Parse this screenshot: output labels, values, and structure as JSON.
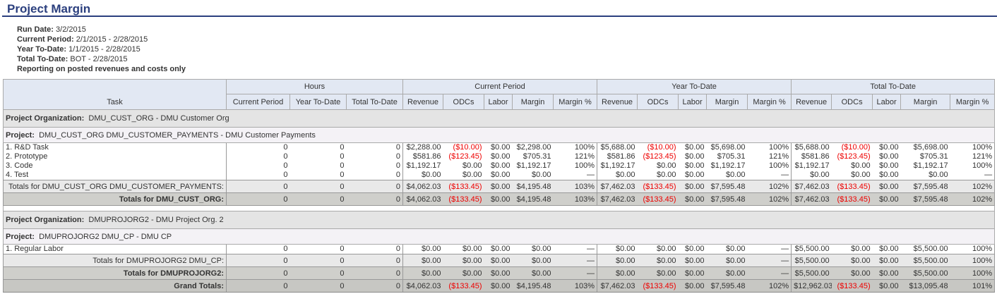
{
  "title": "Project Margin",
  "info": [
    {
      "label": "Run Date:",
      "value": "3/2/2015"
    },
    {
      "label": "Current Period:",
      "value": "2/1/2015 - 2/28/2015"
    },
    {
      "label": "Year To-Date:",
      "value": "1/1/2015 - 2/28/2015"
    },
    {
      "label": "Total To-Date:",
      "value": "BOT - 2/28/2015"
    },
    {
      "label": "Reporting on posted revenues and costs only",
      "value": ""
    }
  ],
  "headers": {
    "task": "Task",
    "groups": [
      "Hours",
      "Current Period",
      "Year To-Date",
      "Total To-Date"
    ],
    "hours": [
      "Current Period",
      "Year To-Date",
      "Total To-Date"
    ],
    "money": [
      "Revenue",
      "ODCs",
      "Labor",
      "Margin",
      "Margin %"
    ]
  },
  "colors": {
    "title": "#2b3f7e",
    "negative": "#e00000",
    "header_bg": "#e2e8f3"
  },
  "rows": [
    {
      "type": "org",
      "label": "Project Organization:",
      "value": "DMU_CUST_ORG - DMU Customer Org"
    },
    {
      "type": "proj",
      "label": "Project:",
      "value": "DMU_CUST_ORG DMU_CUSTOMER_PAYMENTS - DMU Customer Payments"
    },
    {
      "type": "task",
      "name": "1. R&D Task",
      "cells": [
        "0",
        "0",
        "0",
        "$2,288.00",
        "($10.00)",
        "$0.00",
        "$2,298.00",
        "100%",
        "$5,688.00",
        "($10.00)",
        "$0.00",
        "$5,698.00",
        "100%",
        "$5,688.00",
        "($10.00)",
        "$0.00",
        "$5,698.00",
        "100%"
      ]
    },
    {
      "type": "task",
      "name": "2. Prototype",
      "cells": [
        "0",
        "0",
        "0",
        "$581.86",
        "($123.45)",
        "$0.00",
        "$705.31",
        "121%",
        "$581.86",
        "($123.45)",
        "$0.00",
        "$705.31",
        "121%",
        "$581.86",
        "($123.45)",
        "$0.00",
        "$705.31",
        "121%"
      ]
    },
    {
      "type": "task",
      "name": "3. Code",
      "cells": [
        "0",
        "0",
        "0",
        "$1,192.17",
        "$0.00",
        "$0.00",
        "$1,192.17",
        "100%",
        "$1,192.17",
        "$0.00",
        "$0.00",
        "$1,192.17",
        "100%",
        "$1,192.17",
        "$0.00",
        "$0.00",
        "$1,192.17",
        "100%"
      ]
    },
    {
      "type": "task",
      "name": "4. Test",
      "cells": [
        "0",
        "0",
        "0",
        "$0.00",
        "$0.00",
        "$0.00",
        "$0.00",
        "—",
        "$0.00",
        "$0.00",
        "$0.00",
        "$0.00",
        "—",
        "$0.00",
        "$0.00",
        "$0.00",
        "$0.00",
        "—"
      ]
    },
    {
      "type": "sub",
      "name": "Totals for DMU_CUST_ORG DMU_CUSTOMER_PAYMENTS:",
      "cells": [
        "0",
        "0",
        "0",
        "$4,062.03",
        "($133.45)",
        "$0.00",
        "$4,195.48",
        "103%",
        "$7,462.03",
        "($133.45)",
        "$0.00",
        "$7,595.48",
        "102%",
        "$7,462.03",
        "($133.45)",
        "$0.00",
        "$7,595.48",
        "102%"
      ]
    },
    {
      "type": "orgtot",
      "name": "Totals for DMU_CUST_ORG:",
      "cells": [
        "0",
        "0",
        "0",
        "$4,062.03",
        "($133.45)",
        "$0.00",
        "$4,195.48",
        "103%",
        "$7,462.03",
        "($133.45)",
        "$0.00",
        "$7,595.48",
        "102%",
        "$7,462.03",
        "($133.45)",
        "$0.00",
        "$7,595.48",
        "102%"
      ]
    },
    {
      "type": "spacer"
    },
    {
      "type": "org",
      "label": "Project Organization:",
      "value": "DMUPROJORG2 - DMU Project Org. 2"
    },
    {
      "type": "proj",
      "label": "Project:",
      "value": "DMUPROJORG2 DMU_CP - DMU CP"
    },
    {
      "type": "task",
      "name": "1. Regular Labor",
      "cells": [
        "0",
        "0",
        "0",
        "$0.00",
        "$0.00",
        "$0.00",
        "$0.00",
        "—",
        "$0.00",
        "$0.00",
        "$0.00",
        "$0.00",
        "—",
        "$5,500.00",
        "$0.00",
        "$0.00",
        "$5,500.00",
        "100%"
      ]
    },
    {
      "type": "sub",
      "name": "Totals for DMUPROJORG2 DMU_CP:",
      "cells": [
        "0",
        "0",
        "0",
        "$0.00",
        "$0.00",
        "$0.00",
        "$0.00",
        "—",
        "$0.00",
        "$0.00",
        "$0.00",
        "$0.00",
        "—",
        "$5,500.00",
        "$0.00",
        "$0.00",
        "$5,500.00",
        "100%"
      ]
    },
    {
      "type": "orgtot",
      "name": "Totals for DMUPROJORG2:",
      "cells": [
        "0",
        "0",
        "0",
        "$0.00",
        "$0.00",
        "$0.00",
        "$0.00",
        "—",
        "$0.00",
        "$0.00",
        "$0.00",
        "$0.00",
        "—",
        "$5,500.00",
        "$0.00",
        "$0.00",
        "$5,500.00",
        "100%"
      ]
    },
    {
      "type": "grand",
      "name": "Grand Totals:",
      "cells": [
        "0",
        "0",
        "0",
        "$4,062.03",
        "($133.45)",
        "$0.00",
        "$4,195.48",
        "103%",
        "$7,462.03",
        "($133.45)",
        "$0.00",
        "$7,595.48",
        "102%",
        "$12,962.03",
        "($133.45)",
        "$0.00",
        "$13,095.48",
        "101%"
      ]
    }
  ]
}
